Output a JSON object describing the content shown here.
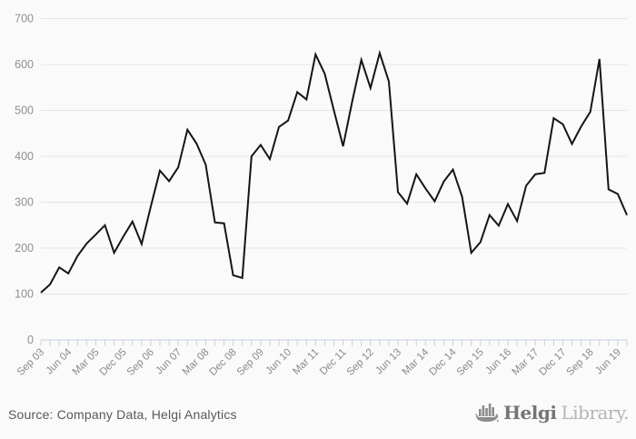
{
  "chart_data": {
    "type": "line",
    "title": "",
    "xlabel": "",
    "ylabel": "",
    "ylim": [
      0,
      700
    ],
    "yticks": [
      0,
      100,
      200,
      300,
      400,
      500,
      600,
      700
    ],
    "grid": "horizontal",
    "legend": "none",
    "x_label_every": 3,
    "shown_x_labels": [
      "Sep 03",
      "Jun 04",
      "Mar 05",
      "Dec 05",
      "Sep 06",
      "Jun 07",
      "Mar 08",
      "Dec 08",
      "Sep 09",
      "Jun 10",
      "Mar 11",
      "Dec 11",
      "Sep 12",
      "Jun 13",
      "Mar 14",
      "Dec 14",
      "Sep 15",
      "Jun 16",
      "Mar 17",
      "Dec 17",
      "Sep 18",
      "Jun 19"
    ],
    "categories": [
      "Sep 03",
      "Dec 03",
      "Mar 04",
      "Jun 04",
      "Sep 04",
      "Dec 04",
      "Mar 05",
      "Jun 05",
      "Sep 05",
      "Dec 05",
      "Mar 06",
      "Jun 06",
      "Sep 06",
      "Dec 06",
      "Mar 07",
      "Jun 07",
      "Sep 07",
      "Dec 07",
      "Mar 08",
      "Jun 08",
      "Sep 08",
      "Dec 08",
      "Mar 09",
      "Jun 09",
      "Sep 09",
      "Dec 09",
      "Mar 10",
      "Jun 10",
      "Sep 10",
      "Dec 10",
      "Mar 11",
      "Jun 11",
      "Sep 11",
      "Dec 11",
      "Mar 12",
      "Jun 12",
      "Sep 12",
      "Dec 12",
      "Mar 13",
      "Jun 13",
      "Sep 13",
      "Dec 13",
      "Mar 14",
      "Jun 14",
      "Sep 14",
      "Dec 14",
      "Mar 15",
      "Jun 15",
      "Sep 15",
      "Dec 15",
      "Mar 16",
      "Jun 16",
      "Sep 16",
      "Dec 16",
      "Mar 17",
      "Jun 17",
      "Sep 17",
      "Dec 17",
      "Mar 18",
      "Jun 18",
      "Sep 18",
      "Dec 18",
      "Mar 19",
      "Jun 19",
      "Sep 19"
    ],
    "values": [
      103,
      121,
      158,
      145,
      183,
      210,
      230,
      250,
      190,
      225,
      258,
      209,
      290,
      369,
      346,
      376,
      458,
      428,
      382,
      256,
      254,
      141,
      135,
      400,
      425,
      394,
      464,
      478,
      540,
      524,
      622,
      580,
      500,
      422,
      520,
      610,
      549,
      625,
      563,
      322,
      297,
      361,
      330,
      302,
      345,
      371,
      312,
      190,
      213,
      272,
      249,
      296,
      259,
      336,
      361,
      364,
      483,
      470,
      427,
      465,
      497,
      612,
      328,
      318,
      272
    ],
    "colors": {
      "line": "#151515",
      "gridline": "#e4e4e4",
      "axis_and_ticks": "#c7cee1",
      "tick_label_text": "#8f8f8f",
      "background": "#fafafa"
    }
  },
  "footer": {
    "source": "Source: Company Data, Helgi Analytics",
    "logo": {
      "helgi": "Helgi",
      "library": "Library."
    }
  }
}
